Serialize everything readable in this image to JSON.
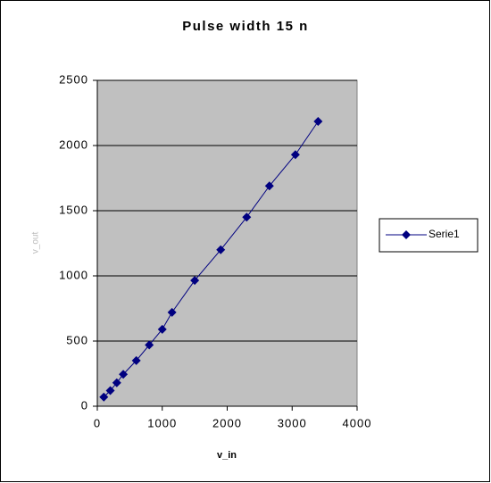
{
  "chart_data": {
    "type": "line",
    "title": "Pulse width 15 n",
    "x_label": "v_in",
    "y_label": "v_out",
    "x": [
      100,
      200,
      300,
      400,
      600,
      800,
      1000,
      1150,
      1500,
      1900,
      2300,
      2650,
      3050,
      3400
    ],
    "series": [
      {
        "name": "Serie1",
        "color": "#000080",
        "values": [
          70,
          120,
          180,
          245,
          350,
          470,
          590,
          720,
          965,
          1200,
          1450,
          1690,
          1930,
          2185
        ]
      }
    ],
    "xlim": [
      0,
      4000
    ],
    "xticks": [
      0,
      1000,
      2000,
      3000,
      4000
    ],
    "ylim": [
      0,
      2500
    ],
    "yticks": [
      0,
      500,
      1000,
      1500,
      2000,
      2500
    ],
    "grid": true,
    "legend": "right"
  }
}
